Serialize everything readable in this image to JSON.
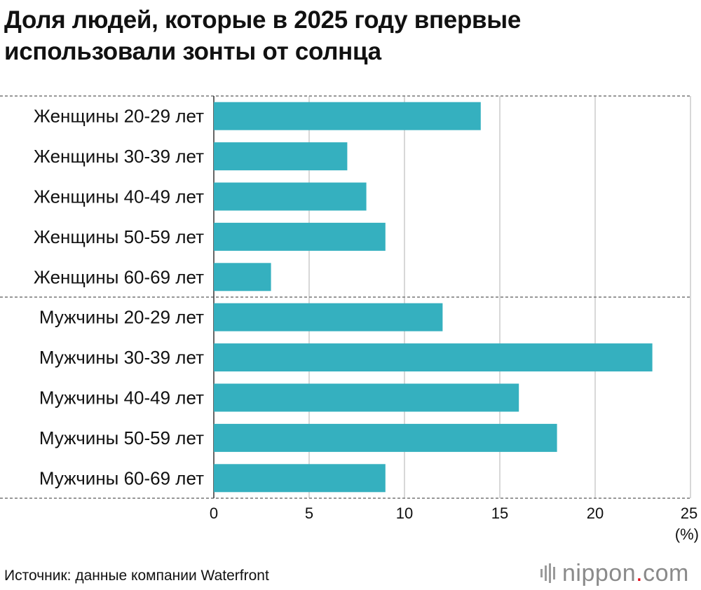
{
  "title": "Доля людей, которые в 2025 году впервые использовали зонты от солнца",
  "source": "Источник: данные компании Waterfront",
  "logo": {
    "name": "nippon",
    "dot": ".",
    "tld": "com"
  },
  "colors": {
    "bar": "#35b0bf",
    "grid": "#cccccc",
    "separator": "#777777",
    "logo_dot": "#e60012",
    "logo_text": "#8a8a8a"
  },
  "chart_data": {
    "type": "bar",
    "orientation": "horizontal",
    "categories": [
      "Женщины 20-29 лет",
      "Женщины 30-39 лет",
      "Женщины 40-49 лет",
      "Женщины 50-59 лет",
      "Женщины 60-69 лет",
      "Мужчины 20-29 лет",
      "Мужчины 30-39 лет",
      "Мужчины 40-49 лет",
      "Мужчины 50-59 лет",
      "Мужчины 60-69 лет"
    ],
    "values": [
      14,
      7,
      8,
      9,
      3,
      12,
      23,
      16,
      18,
      9
    ],
    "groups": [
      {
        "name": "Женщины",
        "count": 5
      },
      {
        "name": "Мужчины",
        "count": 5
      }
    ],
    "xlim": [
      0,
      25
    ],
    "xticks": [
      0,
      5,
      10,
      15,
      20,
      25
    ],
    "unit_label": "(%)",
    "xlabel": "",
    "ylabel": "",
    "grid": true,
    "legend": "none"
  }
}
